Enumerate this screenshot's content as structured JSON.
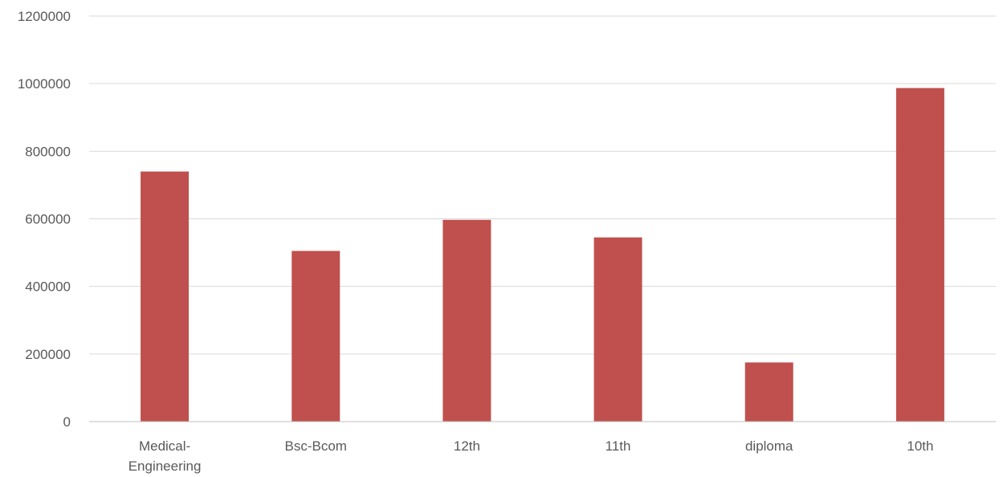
{
  "chart_data": {
    "type": "bar",
    "title": "",
    "xlabel": "",
    "ylabel": "",
    "categories": [
      [
        "Medical-",
        "Engineering"
      ],
      [
        "Bsc-Bcom"
      ],
      [
        "12th"
      ],
      [
        "11th"
      ],
      [
        "diploma"
      ],
      [
        "10th"
      ]
    ],
    "values": [
      740000,
      505000,
      597000,
      545000,
      175000,
      987000
    ],
    "ylim": [
      0,
      1200000
    ],
    "yticks": [
      "0",
      "200000",
      "400000",
      "600000",
      "800000",
      "1000000",
      "1200000"
    ],
    "ytick_values": [
      0,
      200000,
      400000,
      600000,
      800000,
      1000000,
      1200000
    ],
    "grid": true,
    "legend": "none",
    "bar_color": "#c0504d"
  }
}
